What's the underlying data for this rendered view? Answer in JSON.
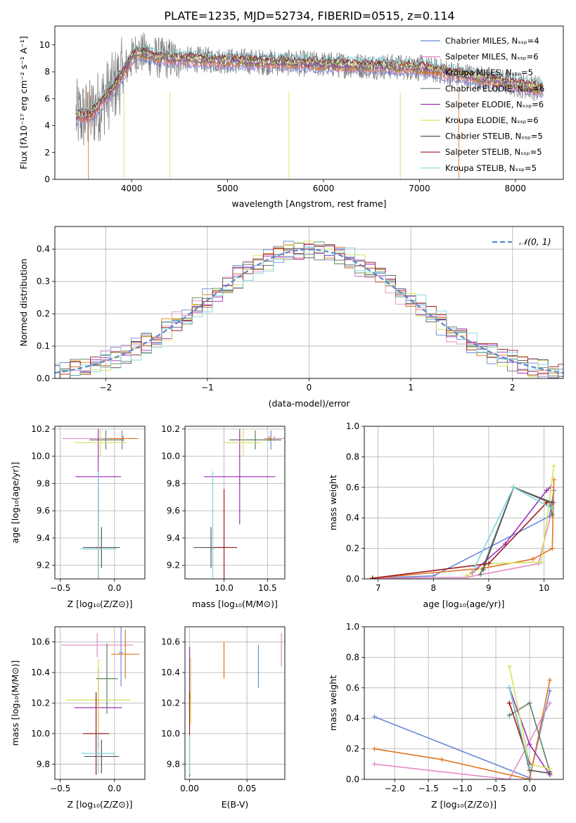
{
  "figure": {
    "title": "PLATE=1235, MJD=52734, FIBERID=0515, z=0.114"
  },
  "chart_data": [
    {
      "id": "spectrum",
      "type": "line",
      "xlabel": "wavelength [Angstrom, rest frame]",
      "ylabel": "Flux [fλ10⁻¹⁷ erg cm⁻² s⁻¹ A⁻¹]",
      "xlim": [
        3200,
        8500
      ],
      "ylim": [
        0,
        11.4
      ],
      "xticks": [
        4000,
        5000,
        6000,
        7000,
        8000
      ],
      "yticks": [
        0,
        2,
        4,
        6,
        8,
        10
      ],
      "grid": false,
      "legend_position": "top-right",
      "series": [
        {
          "name": "Chabrier MILES, Nₛₛₚ=4",
          "color": "#6a89d8"
        },
        {
          "name": "Salpeter MILES, Nₛₛₚ=6",
          "color": "#e58ac6"
        },
        {
          "name": "Kroupa MILES, Nₛₛₚ=5",
          "color": "#e0761f"
        },
        {
          "name": "Chabrier ELODIE, Nₛₛₚ=6",
          "color": "#5b7f5f"
        },
        {
          "name": "Salpeter ELODIE, Nₛₛₚ=6",
          "color": "#a12fb7"
        },
        {
          "name": "Kroupa ELODIE, Nₛₛₚ=6",
          "color": "#d4e45d"
        },
        {
          "name": "Chabrier STELIB, Nₛₛₚ=5",
          "color": "#555555"
        },
        {
          "name": "Salpeter STELIB, Nₛₛₚ=5",
          "color": "#9e1b1b"
        },
        {
          "name": "Kroupa STELIB, Nₛₛₚ=5",
          "color": "#7fd4dc"
        }
      ]
    },
    {
      "id": "residuals",
      "type": "line",
      "xlabel": "(data-model)/error",
      "ylabel": "Normed distribution",
      "xlim": [
        -2.5,
        2.5
      ],
      "ylim": [
        0,
        0.47
      ],
      "xticks": [
        -2,
        -1,
        0,
        1,
        2
      ],
      "xtick_labels": [
        "−2",
        "−1",
        "0",
        "1",
        "2"
      ],
      "yticks": [
        0.0,
        0.1,
        0.2,
        0.3,
        0.4
      ],
      "ytick_labels": [
        "0.0",
        "0.1",
        "0.2",
        "0.3",
        "0.4"
      ],
      "grid": true,
      "legend": {
        "label": "𝒩(0, 1)",
        "position": "top-right"
      }
    },
    {
      "id": "age_vs_Z",
      "type": "scatter",
      "xlabel": "Z [log₁₀(Z/Z⊙)]",
      "ylabel": "age  [log₁₀(age/yr)]",
      "xlim": [
        -0.55,
        0.28
      ],
      "ylim": [
        9.1,
        10.22
      ],
      "xticks": [
        -0.5,
        0.0
      ],
      "xtick_labels": [
        "−0.5",
        "0.0"
      ],
      "yticks": [
        9.2,
        9.4,
        9.6,
        9.8,
        10.0,
        10.2
      ],
      "ytick_labels": [
        "9.2",
        "9.4",
        "9.6",
        "9.8",
        "10.0",
        "10.2"
      ],
      "grid": true,
      "points": [
        {
          "model": 0,
          "x": 0.07,
          "xerr": 0.02,
          "y": 10.12,
          "yerr": 0.07
        },
        {
          "model": 1,
          "x": -0.15,
          "xerr": 0.33,
          "y": 10.13,
          "yerr": 0.02
        },
        {
          "model": 2,
          "x": 0.08,
          "xerr": 0.14,
          "y": 10.13,
          "yerr": 0.02
        },
        {
          "model": 3,
          "x": -0.08,
          "xerr": 0.15,
          "y": 10.12,
          "yerr": 0.07
        },
        {
          "model": 4,
          "x": -0.15,
          "xerr": 0.21,
          "y": 9.85,
          "yerr": 0.35
        },
        {
          "model": 5,
          "x": -0.13,
          "xerr": 0.24,
          "y": 10.1,
          "yerr": 0.1
        },
        {
          "model": 6,
          "x": -0.12,
          "xerr": 0.17,
          "y": 9.33,
          "yerr": 0.15
        },
        {
          "model": 7,
          "x": -0.15,
          "xerr": 0.02,
          "y": 9.33,
          "yerr": 0.43
        },
        {
          "model": 8,
          "x": -0.15,
          "xerr": 0.17,
          "y": 9.32,
          "yerr": 0.57
        }
      ]
    },
    {
      "id": "age_vs_mass",
      "type": "scatter",
      "xlabel": "mass [log₁₀(M/M⊙)]",
      "ylabel": "",
      "xlim": [
        9.55,
        10.7
      ],
      "ylim": [
        9.1,
        10.22
      ],
      "xticks": [
        10.0,
        10.5
      ],
      "xtick_labels": [
        "10.0",
        "10.5"
      ],
      "yticks": [
        9.2,
        9.4,
        9.6,
        9.8,
        10.0,
        10.2
      ],
      "ytick_labels": [
        "9.2",
        "9.4",
        "9.6",
        "9.8",
        "10.0",
        "10.2"
      ],
      "grid": true,
      "points": [
        {
          "model": 0,
          "x": 10.54,
          "xerr": 0.02,
          "y": 10.12,
          "yerr": 0.07
        },
        {
          "model": 1,
          "x": 10.58,
          "xerr": 0.12,
          "y": 10.13,
          "yerr": 0.02
        },
        {
          "model": 2,
          "x": 10.52,
          "xerr": 0.03,
          "y": 10.13,
          "yerr": 0.02
        },
        {
          "model": 3,
          "x": 10.36,
          "xerr": 0.3,
          "y": 10.12,
          "yerr": 0.07
        },
        {
          "model": 4,
          "x": 10.18,
          "xerr": 0.41,
          "y": 9.85,
          "yerr": 0.35
        },
        {
          "model": 5,
          "x": 10.22,
          "xerr": 0.22,
          "y": 10.1,
          "yerr": 0.1
        },
        {
          "model": 6,
          "x": 9.85,
          "xerr": 0.2,
          "y": 9.33,
          "yerr": 0.15
        },
        {
          "model": 7,
          "x": 10.0,
          "xerr": 0.15,
          "y": 9.33,
          "yerr": 0.43
        },
        {
          "model": 8,
          "x": 9.87,
          "xerr": 0.02,
          "y": 9.32,
          "yerr": 0.57
        }
      ]
    },
    {
      "id": "mass_weight_vs_age",
      "type": "line",
      "xlabel": "age  [log₁₀(age/yr)]",
      "ylabel": "mass weight",
      "xlim": [
        6.75,
        10.35
      ],
      "ylim": [
        0,
        1.0
      ],
      "xticks": [
        7,
        8,
        9,
        10
      ],
      "yticks": [
        0.0,
        0.2,
        0.4,
        0.6,
        0.8,
        1.0
      ],
      "ytick_labels": [
        "0.0",
        "0.2",
        "0.4",
        "0.6",
        "0.8",
        "1.0"
      ],
      "grid": true,
      "series": [
        {
          "model": 0,
          "x": [
            6.9,
            8.0,
            10.1,
            10.18
          ],
          "y": [
            0.005,
            0.02,
            0.41,
            0.58
          ]
        },
        {
          "model": 1,
          "x": [
            6.9,
            8.6,
            9.9,
            10.18
          ],
          "y": [
            0.005,
            0.01,
            0.1,
            0.5
          ]
        },
        {
          "model": 2,
          "x": [
            6.9,
            8.9,
            9.8,
            10.15,
            10.18
          ],
          "y": [
            0.005,
            0.07,
            0.13,
            0.2,
            0.65
          ]
        },
        {
          "model": 3,
          "x": [
            8.85,
            9.45,
            10.1,
            10.15
          ],
          "y": [
            0.03,
            0.6,
            0.5,
            0.42
          ]
        },
        {
          "model": 4,
          "x": [
            8.7,
            9.3,
            10.05,
            10.12
          ],
          "y": [
            0.04,
            0.23,
            0.58,
            0.6
          ]
        },
        {
          "model": 5,
          "x": [
            8.6,
            9.0,
            9.95,
            10.18
          ],
          "y": [
            0.02,
            0.1,
            0.11,
            0.74
          ]
        },
        {
          "model": 6,
          "x": [
            8.9,
            9.45,
            10.15
          ],
          "y": [
            0.06,
            0.6,
            0.5
          ]
        },
        {
          "model": 7,
          "x": [
            6.9,
            9.0,
            10.05
          ],
          "y": [
            0.005,
            0.1,
            0.5
          ]
        },
        {
          "model": 8,
          "x": [
            8.75,
            9.45,
            10.15
          ],
          "y": [
            0.08,
            0.6,
            0.46
          ]
        }
      ]
    },
    {
      "id": "mass_vs_Z",
      "type": "scatter",
      "xlabel": "Z [log₁₀(Z/Z⊙)]",
      "ylabel": "mass [log₁₀(M/M⊙)]",
      "xlim": [
        -0.55,
        0.28
      ],
      "ylim": [
        9.7,
        10.7
      ],
      "xticks": [
        -0.5,
        0.0
      ],
      "xtick_labels": [
        "−0.5",
        "0.0"
      ],
      "yticks": [
        9.8,
        10.0,
        10.2,
        10.4,
        10.6
      ],
      "ytick_labels": [
        "9.8",
        "10.0",
        "10.2",
        "10.4",
        "10.6"
      ],
      "grid": true,
      "points": [
        {
          "model": 0,
          "x": 0.06,
          "xerr": 0.02,
          "y": 10.53,
          "yerr": 0.22
        },
        {
          "model": 1,
          "x": -0.16,
          "xerr": 0.33,
          "y": 10.58,
          "yerr": 0.08
        },
        {
          "model": 2,
          "x": 0.1,
          "xerr": 0.13,
          "y": 10.52,
          "yerr": 0.16
        },
        {
          "model": 3,
          "x": -0.07,
          "xerr": 0.1,
          "y": 10.36,
          "yerr": 0.23
        },
        {
          "model": 4,
          "x": -0.15,
          "xerr": 0.22,
          "y": 10.17,
          "yerr": 0.26
        },
        {
          "model": 5,
          "x": -0.15,
          "xerr": 0.3,
          "y": 10.22,
          "yerr": 0.27
        },
        {
          "model": 6,
          "x": -0.12,
          "xerr": 0.16,
          "y": 9.85,
          "yerr": 0.11
        },
        {
          "model": 7,
          "x": -0.17,
          "xerr": 0.12,
          "y": 10.0,
          "yerr": 0.27
        },
        {
          "model": 8,
          "x": -0.15,
          "xerr": 0.16,
          "y": 9.87,
          "yerr": 0.13
        }
      ]
    },
    {
      "id": "mass_vs_EBV",
      "type": "scatter",
      "xlabel": "E(B-V)",
      "ylabel": "",
      "xlim": [
        -0.004,
        0.083
      ],
      "ylim": [
        9.7,
        10.7
      ],
      "xticks": [
        0.0,
        0.05
      ],
      "xtick_labels": [
        "0.00",
        "0.05"
      ],
      "yticks": [
        9.8,
        10.0,
        10.2,
        10.4,
        10.6
      ],
      "ytick_labels": [
        "9.8",
        "10.0",
        "10.2",
        "10.4",
        "10.6"
      ],
      "grid": true,
      "points": [
        {
          "model": 0,
          "x": 0.06,
          "y": 10.44,
          "yerr": 0.14
        },
        {
          "model": 1,
          "x": 0.08,
          "y": 10.55,
          "yerr": 0.11
        },
        {
          "model": 2,
          "x": 0.03,
          "y": 10.48,
          "yerr": 0.12
        },
        {
          "model": 3,
          "x": 0.0,
          "y": 10.36,
          "yerr": 0.2
        },
        {
          "model": 4,
          "x": 0.0,
          "y": 10.4,
          "yerr": 0.17
        },
        {
          "model": 5,
          "x": 0.001,
          "y": 10.28,
          "yerr": 0.22
        },
        {
          "model": 6,
          "x": 0.0,
          "y": 9.84,
          "yerr": 0.12
        },
        {
          "model": 7,
          "x": 0.0,
          "y": 10.12,
          "yerr": 0.15
        },
        {
          "model": 8,
          "x": 0.0,
          "y": 9.86,
          "yerr": 0.13
        }
      ]
    },
    {
      "id": "mass_weight_vs_Z",
      "type": "line",
      "xlabel": "Z [log₁₀(Z/Z⊙)]",
      "ylabel": "mass weight",
      "xlim": [
        -2.45,
        0.5
      ],
      "ylim": [
        0,
        1.0
      ],
      "xticks": [
        -2.0,
        -1.5,
        -1.0,
        -0.5,
        0.0
      ],
      "xtick_labels": [
        "−2.0",
        "−1.5",
        "−1.0",
        "−0.5",
        "0.0"
      ],
      "yticks": [
        0.0,
        0.2,
        0.4,
        0.6,
        0.8,
        1.0
      ],
      "ytick_labels": [
        "0.0",
        "0.2",
        "0.4",
        "0.6",
        "0.8",
        "1.0"
      ],
      "grid": true,
      "series": [
        {
          "model": 0,
          "x": [
            -2.3,
            0.0,
            0.3
          ],
          "y": [
            0.41,
            0.01,
            0.58
          ]
        },
        {
          "model": 1,
          "x": [
            -2.3,
            -0.3,
            0.3
          ],
          "y": [
            0.1,
            0.0,
            0.5
          ]
        },
        {
          "model": 2,
          "x": [
            -2.3,
            -1.3,
            0.0,
            0.3
          ],
          "y": [
            0.2,
            0.13,
            0.0,
            0.65
          ]
        },
        {
          "model": 3,
          "x": [
            -0.3,
            0.0,
            0.3
          ],
          "y": [
            0.42,
            0.5,
            0.05
          ]
        },
        {
          "model": 4,
          "x": [
            -0.3,
            0.0,
            0.3
          ],
          "y": [
            0.6,
            0.23,
            0.03
          ]
        },
        {
          "model": 5,
          "x": [
            -0.3,
            0.0,
            0.3
          ],
          "y": [
            0.74,
            0.1,
            0.07
          ]
        },
        {
          "model": 6,
          "x": [
            -0.3,
            0.0,
            0.3
          ],
          "y": [
            0.6,
            0.06,
            0.04
          ]
        },
        {
          "model": 7,
          "x": [
            -0.3,
            0.0
          ],
          "y": [
            0.5,
            0.1
          ]
        },
        {
          "model": 8,
          "x": [
            -0.3,
            0.0
          ],
          "y": [
            0.6,
            0.08
          ]
        }
      ]
    }
  ]
}
